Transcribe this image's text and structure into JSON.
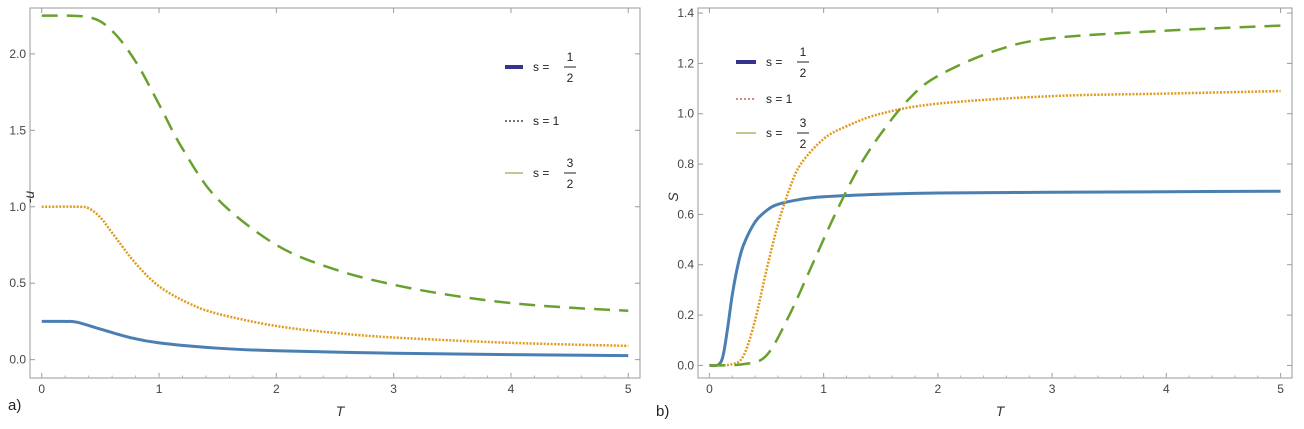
{
  "chart_data": [
    {
      "type": "line",
      "panel_label": "a)",
      "xlabel": "T",
      "ylabel": "-u",
      "xlim": [
        -0.1,
        5.1
      ],
      "ylim": [
        -0.12,
        2.3
      ],
      "xticks": [
        "0",
        "1",
        "2",
        "3",
        "4",
        "5"
      ],
      "yticks": [
        "0.0",
        "0.5",
        "1.0",
        "1.5",
        "2.0"
      ],
      "legend": [
        {
          "s": "s =",
          "num": "1",
          "den": "2",
          "swatch": "#34348c"
        },
        {
          "s": "s = 1",
          "swatch": "#222222"
        },
        {
          "s": "s =",
          "num": "3",
          "den": "2",
          "swatch": "#a8b86a"
        }
      ],
      "series": [
        {
          "name": "s = 1/2",
          "color": "#4b7fb3",
          "style": "solid",
          "x": [
            0,
            0.2,
            0.3,
            0.5,
            0.75,
            1,
            1.5,
            2,
            3,
            4,
            5
          ],
          "y": [
            0.25,
            0.25,
            0.245,
            0.2,
            0.145,
            0.11,
            0.075,
            0.058,
            0.042,
            0.033,
            0.026
          ]
        },
        {
          "name": "s = 1",
          "color": "#e09a1e",
          "style": "dotted",
          "x": [
            0,
            0.3,
            0.4,
            0.5,
            0.6,
            0.8,
            1,
            1.25,
            1.5,
            2,
            2.5,
            3,
            4,
            5
          ],
          "y": [
            1.0,
            1.0,
            0.99,
            0.93,
            0.83,
            0.63,
            0.48,
            0.37,
            0.3,
            0.22,
            0.175,
            0.145,
            0.11,
            0.09
          ]
        },
        {
          "name": "s = 3/2",
          "color": "#6aa02e",
          "style": "dashed",
          "x": [
            0,
            0.4,
            0.6,
            0.8,
            1,
            1.2,
            1.5,
            2,
            2.5,
            3,
            3.5,
            4,
            4.5,
            5
          ],
          "y": [
            2.25,
            2.24,
            2.15,
            1.95,
            1.67,
            1.38,
            1.05,
            0.75,
            0.59,
            0.49,
            0.42,
            0.37,
            0.34,
            0.32
          ]
        }
      ]
    },
    {
      "type": "line",
      "panel_label": "b)",
      "xlabel": "T",
      "ylabel": "S",
      "xlim": [
        -0.1,
        5.1
      ],
      "ylim": [
        -0.05,
        1.42
      ],
      "xticks": [
        "0",
        "1",
        "2",
        "3",
        "4",
        "5"
      ],
      "yticks": [
        "0.0",
        "0.2",
        "0.4",
        "0.6",
        "0.8",
        "1.0",
        "1.2",
        "1.4"
      ],
      "legend": [
        {
          "s": "s =",
          "num": "1",
          "den": "2",
          "swatch": "#34348c"
        },
        {
          "s": "s = 1",
          "swatch": "#b94040"
        },
        {
          "s": "s =",
          "num": "3",
          "den": "2",
          "swatch": "#a8b86a"
        }
      ],
      "series": [
        {
          "name": "s = 1/2",
          "color": "#4b7fb3",
          "style": "solid",
          "x": [
            0,
            0.08,
            0.12,
            0.16,
            0.2,
            0.25,
            0.3,
            0.4,
            0.5,
            0.6,
            0.8,
            1,
            1.5,
            2,
            3,
            4,
            5
          ],
          "y": [
            0,
            0.003,
            0.04,
            0.15,
            0.28,
            0.4,
            0.48,
            0.57,
            0.615,
            0.64,
            0.66,
            0.67,
            0.68,
            0.685,
            0.688,
            0.69,
            0.692
          ]
        },
        {
          "name": "s = 1",
          "color": "#e09a1e",
          "style": "dotted",
          "x": [
            0,
            0.2,
            0.3,
            0.4,
            0.5,
            0.6,
            0.7,
            0.8,
            1,
            1.2,
            1.5,
            2,
            3,
            4,
            5
          ],
          "y": [
            0,
            0.005,
            0.04,
            0.18,
            0.38,
            0.56,
            0.7,
            0.8,
            0.9,
            0.95,
            1.0,
            1.04,
            1.07,
            1.08,
            1.09
          ]
        },
        {
          "name": "s = 3/2",
          "color": "#6aa02e",
          "style": "dashed",
          "x": [
            0,
            0.3,
            0.5,
            0.7,
            0.9,
            1.1,
            1.3,
            1.5,
            1.75,
            2,
            2.5,
            3,
            4,
            5
          ],
          "y": [
            0,
            0.005,
            0.04,
            0.2,
            0.4,
            0.6,
            0.78,
            0.92,
            1.06,
            1.15,
            1.25,
            1.3,
            1.33,
            1.35
          ]
        }
      ]
    }
  ]
}
